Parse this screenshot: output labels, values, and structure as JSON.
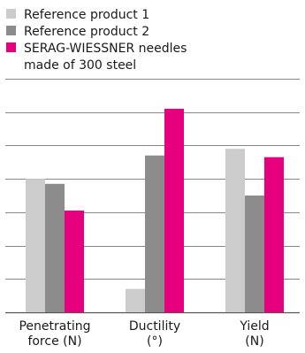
{
  "chart_data": {
    "type": "bar",
    "categories": [
      [
        "Penetrating",
        "force (N)"
      ],
      [
        "Ductility",
        "(°)"
      ],
      [
        "Yield",
        "(N)"
      ]
    ],
    "series": [
      {
        "name": [
          "Reference product 1"
        ],
        "color": "#cccccc",
        "values": [
          4.0,
          0.7,
          4.9
        ]
      },
      {
        "name": [
          "Reference product 2"
        ],
        "color": "#8c8c8c",
        "values": [
          3.85,
          4.7,
          3.5
        ]
      },
      {
        "name": [
          "SERAG-WIESSNER needles",
          "made of 300 steel"
        ],
        "color": "#e6007e",
        "values": [
          3.05,
          6.1,
          4.65
        ]
      }
    ],
    "ylim": [
      0,
      7
    ],
    "yticks": [
      0,
      1,
      2,
      3,
      4,
      5,
      6,
      7
    ],
    "grid": true,
    "legend_position": "top-left",
    "title": "",
    "xlabel": "",
    "ylabel": ""
  }
}
